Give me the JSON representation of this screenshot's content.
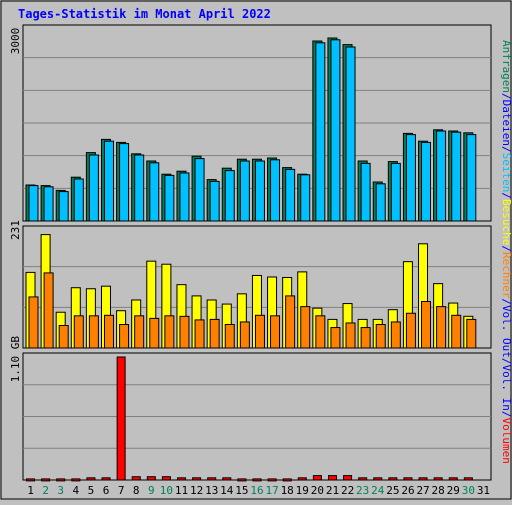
{
  "chart_data": [
    {
      "type": "bar",
      "title": "Tages-Statistik im Monat April 2022",
      "panel": "top",
      "ylabel_parts": [
        {
          "text": "Anfragen",
          "color": "#00805c"
        },
        {
          "text": "/",
          "color": "#0000ff"
        },
        {
          "text": "Dateien",
          "color": "#0000ff"
        },
        {
          "text": "/",
          "color": "#0000ff"
        },
        {
          "text": "Seiten",
          "color": "#00c0ff"
        },
        {
          "text": "/",
          "color": "#0000ff"
        },
        {
          "text": "Besuche",
          "color": "#ffff00"
        },
        {
          "text": "/",
          "color": "#0000ff"
        },
        {
          "text": "Rechner",
          "color": "#ff8000"
        },
        {
          "text": "/",
          "color": "#0000ff"
        },
        {
          "text": "Vol. Out",
          "color": "#0000ff"
        },
        {
          "text": "/",
          "color": "#0000ff"
        },
        {
          "text": "Vol. In",
          "color": "#0000ff"
        },
        {
          "text": "/",
          "color": "#0000ff"
        },
        {
          "text": "Volumen",
          "color": "#ff0000"
        }
      ],
      "ytick": "3000",
      "ylim": [
        0,
        3200
      ],
      "categories": [
        "1",
        "2",
        "3",
        "4",
        "5",
        "6",
        "7",
        "8",
        "9",
        "10",
        "11",
        "12",
        "13",
        "14",
        "15",
        "16",
        "17",
        "18",
        "19",
        "20",
        "21",
        "22",
        "23",
        "24",
        "25",
        "26",
        "27",
        "28",
        "29",
        "30",
        "31"
      ],
      "weekend": [
        2,
        3,
        9,
        10,
        16,
        17,
        23,
        24,
        30
      ],
      "series": [
        {
          "color": "#00805c",
          "values": [
            600,
            590,
            510,
            730,
            1140,
            1360,
            1310,
            1120,
            1000,
            780,
            830,
            1080,
            690,
            880,
            1030,
            1030,
            1050,
            890,
            780,
            3000,
            3050,
            2940,
            1000,
            650,
            990,
            1460,
            1330,
            1520,
            1500,
            1470,
            0
          ]
        },
        {
          "color": "#00c0ff",
          "values": [
            590,
            570,
            490,
            700,
            1100,
            1330,
            1290,
            1100,
            970,
            760,
            800,
            1040,
            660,
            840,
            1000,
            1000,
            1020,
            860,
            770,
            2970,
            3020,
            2900,
            960,
            620,
            960,
            1440,
            1310,
            1500,
            1480,
            1440,
            0
          ]
        }
      ]
    },
    {
      "type": "bar",
      "panel": "middle",
      "ytick": "231",
      "ylim": [
        0,
        231
      ],
      "series": [
        {
          "color": "#ffff00",
          "values": [
            148,
            222,
            70,
            118,
            116,
            121,
            73,
            94,
            170,
            164,
            124,
            102,
            94,
            86,
            106,
            142,
            139,
            138,
            149,
            78,
            56,
            87,
            56,
            56,
            75,
            169,
            204,
            126,
            88,
            62,
            0
          ]
        },
        {
          "color": "#ff8000",
          "values": [
            100,
            147,
            44,
            63,
            63,
            64,
            46,
            63,
            58,
            63,
            62,
            55,
            56,
            46,
            51,
            64,
            63,
            102,
            81,
            63,
            40,
            49,
            40,
            46,
            51,
            68,
            91,
            81,
            64,
            56,
            0
          ]
        }
      ]
    },
    {
      "type": "bar",
      "panel": "bottom",
      "ytick": "1.10 GB",
      "ylim": [
        0,
        1.12
      ],
      "series": [
        {
          "color": "#ff0000",
          "values": [
            0.01,
            0.01,
            0.01,
            0.01,
            0.02,
            0.02,
            1.12,
            0.03,
            0.03,
            0.03,
            0.02,
            0.02,
            0.02,
            0.02,
            0.01,
            0.01,
            0.01,
            0.01,
            0.02,
            0.04,
            0.04,
            0.04,
            0.02,
            0.02,
            0.02,
            0.02,
            0.02,
            0.02,
            0.02,
            0.02,
            0
          ]
        }
      ]
    }
  ]
}
